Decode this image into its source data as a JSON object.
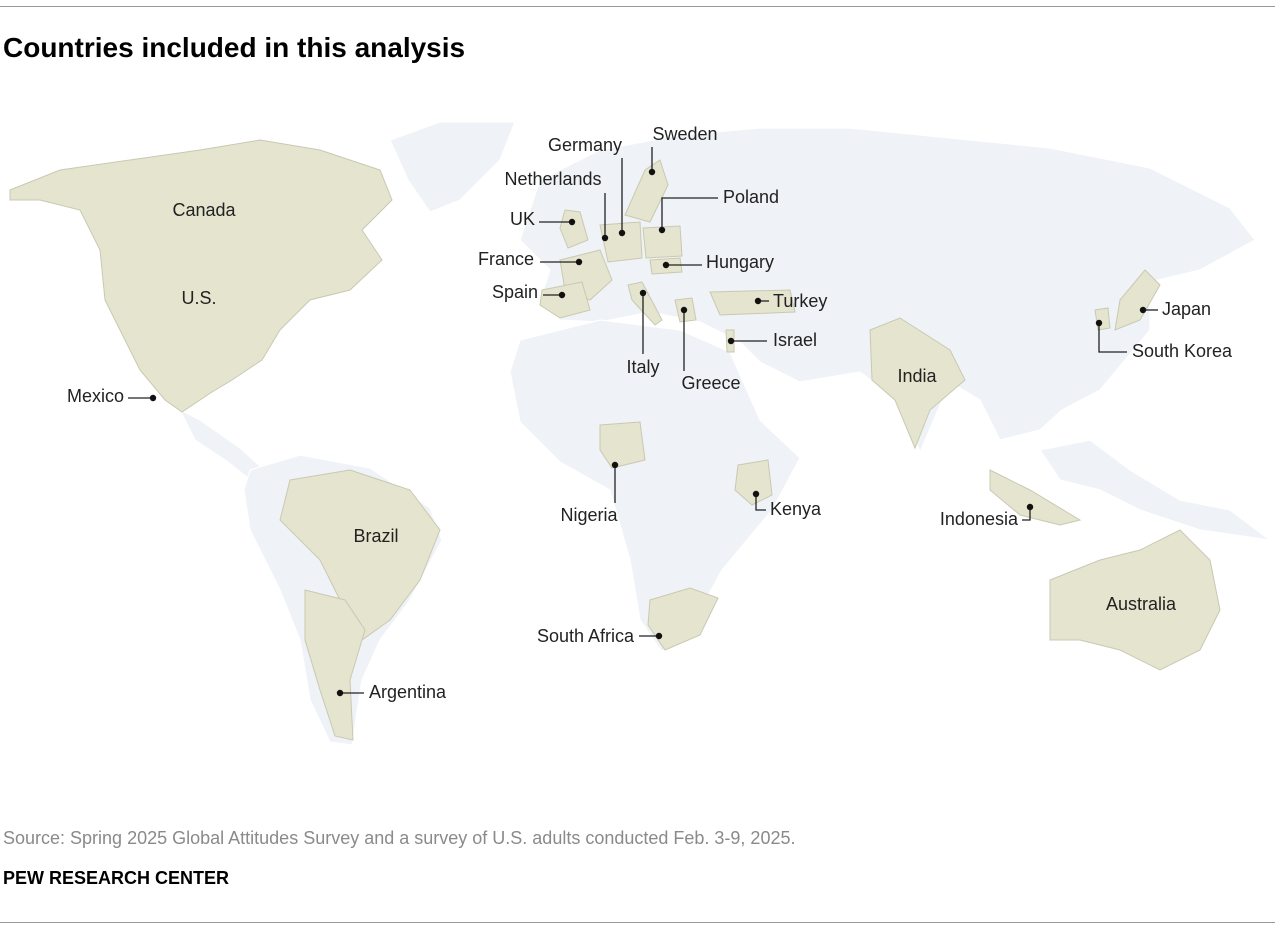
{
  "title": "Countries included in this analysis",
  "countries": [
    {
      "label": "Canada"
    },
    {
      "label": "U.S."
    },
    {
      "label": "Mexico"
    },
    {
      "label": "Brazil"
    },
    {
      "label": "Argentina"
    },
    {
      "label": "UK"
    },
    {
      "label": "Netherlands"
    },
    {
      "label": "Germany"
    },
    {
      "label": "Sweden"
    },
    {
      "label": "Poland"
    },
    {
      "label": "France"
    },
    {
      "label": "Hungary"
    },
    {
      "label": "Spain"
    },
    {
      "label": "Italy"
    },
    {
      "label": "Greece"
    },
    {
      "label": "Turkey"
    },
    {
      "label": "Israel"
    },
    {
      "label": "India"
    },
    {
      "label": "Japan"
    },
    {
      "label": "South Korea"
    },
    {
      "label": "Nigeria"
    },
    {
      "label": "Kenya"
    },
    {
      "label": "Indonesia"
    },
    {
      "label": "South Africa"
    },
    {
      "label": "Australia"
    }
  ],
  "source": "Source: Spring 2025 Global Attitudes Survey and a survey of U.S. adults conducted Feb. 3-9, 2025.",
  "footer": "PEW RESEARCH CENTER"
}
